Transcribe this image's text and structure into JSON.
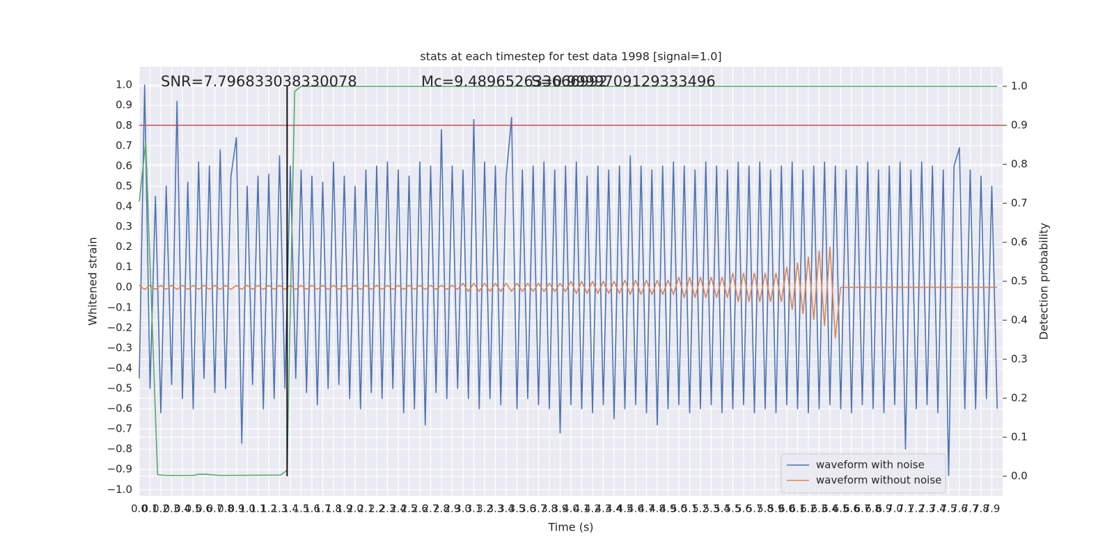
{
  "chart_data": {
    "type": "line",
    "title": "stats at each timestep for test data 1998 [signal=1.0]",
    "xlabel": "Time (s)",
    "ylabel": "Whitened strain",
    "y2label": "Detection probability",
    "annotations": [
      "SNR=7.796833038330078",
      "Mc=9.489652633666992",
      "S=0.9999709129333496"
    ],
    "grid": true,
    "legend": "lower right",
    "xlim": [
      0,
      8
    ],
    "ylim": [
      -1.03,
      1.09
    ],
    "y2lim": [
      -0.05,
      1.05
    ],
    "hline": {
      "value": 0.9,
      "axis": "y2",
      "color": "#c44e52"
    },
    "vline": {
      "x": 1.37,
      "ymin": 0.0,
      "ymax": 1.0,
      "axis": "y2",
      "color": "#000000"
    },
    "x": [
      0,
      0.05,
      0.1,
      0.15,
      0.2,
      0.25,
      0.3,
      0.35,
      0.4,
      0.45,
      0.5,
      0.55,
      0.6,
      0.65,
      0.7,
      0.75,
      0.8,
      0.85,
      0.9,
      0.95,
      1,
      1.05,
      1.1,
      1.15,
      1.2,
      1.25,
      1.3,
      1.35,
      1.4,
      1.45,
      1.5,
      1.55,
      1.6,
      1.65,
      1.7,
      1.75,
      1.8,
      1.85,
      1.9,
      1.95,
      2,
      2.05,
      2.1,
      2.15,
      2.2,
      2.25,
      2.3,
      2.35,
      2.4,
      2.45,
      2.5,
      2.55,
      2.6,
      2.65,
      2.7,
      2.75,
      2.8,
      2.85,
      2.9,
      2.95,
      3,
      3.05,
      3.1,
      3.15,
      3.2,
      3.25,
      3.3,
      3.35,
      3.4,
      3.45,
      3.5,
      3.55,
      3.6,
      3.65,
      3.7,
      3.75,
      3.8,
      3.85,
      3.9,
      3.95,
      4,
      4.05,
      4.1,
      4.15,
      4.2,
      4.25,
      4.3,
      4.35,
      4.4,
      4.45,
      4.5,
      4.55,
      4.6,
      4.65,
      4.7,
      4.75,
      4.8,
      4.85,
      4.9,
      4.95,
      5,
      5.05,
      5.1,
      5.15,
      5.2,
      5.25,
      5.3,
      5.35,
      5.4,
      5.45,
      5.5,
      5.55,
      5.6,
      5.65,
      5.7,
      5.75,
      5.8,
      5.85,
      5.9,
      5.95,
      6,
      6.05,
      6.1,
      6.15,
      6.2,
      6.25,
      6.3,
      6.35,
      6.4,
      6.45,
      6.5,
      6.55,
      6.6,
      6.65,
      6.7,
      6.75,
      6.8,
      6.85,
      6.9,
      6.95,
      7,
      7.05,
      7.1,
      7.15,
      7.2,
      7.25,
      7.3,
      7.35,
      7.4,
      7.45,
      7.5,
      7.55,
      7.6,
      7.65,
      7.7,
      7.75,
      7.8,
      7.85,
      7.9,
      7.95
    ],
    "series": [
      {
        "name": "waveform with noise",
        "color": "#4c72b0",
        "values": [
          -0.45,
          1.0,
          -0.5,
          0.45,
          -0.62,
          0.5,
          -0.48,
          0.92,
          -0.55,
          0.52,
          -0.6,
          0.62,
          -0.45,
          0.6,
          -0.52,
          0.68,
          -0.5,
          0.55,
          0.74,
          -0.77,
          0.5,
          -0.48,
          0.55,
          -0.6,
          0.56,
          -0.55,
          0.65,
          -0.5,
          0.6,
          -0.45,
          0.58,
          -0.52,
          0.55,
          -0.58,
          0.52,
          -0.5,
          0.62,
          -0.48,
          0.55,
          -0.55,
          0.5,
          -0.6,
          0.58,
          -0.52,
          0.6,
          -0.55,
          0.62,
          -0.5,
          0.58,
          -0.62,
          0.55,
          -0.6,
          0.62,
          -0.68,
          0.6,
          -0.52,
          0.78,
          -0.55,
          0.6,
          -0.5,
          0.58,
          -0.55,
          0.83,
          -0.6,
          0.62,
          -0.55,
          0.6,
          -0.58,
          0.55,
          0.84,
          -0.6,
          0.58,
          -0.55,
          0.6,
          -0.58,
          0.62,
          -0.6,
          0.58,
          -0.72,
          0.6,
          -0.58,
          0.62,
          -0.6,
          0.55,
          -0.62,
          0.6,
          -0.58,
          0.58,
          -0.65,
          0.6,
          -0.6,
          0.65,
          -0.58,
          0.6,
          -0.62,
          0.58,
          -0.68,
          0.6,
          -0.6,
          0.62,
          -0.58,
          0.6,
          -0.62,
          0.58,
          -0.6,
          0.62,
          -0.58,
          0.6,
          -0.62,
          0.58,
          -0.6,
          0.62,
          -0.58,
          0.6,
          -0.62,
          0.62,
          -0.6,
          0.58,
          -0.62,
          0.6,
          -0.58,
          0.62,
          -0.6,
          0.58,
          -0.62,
          0.6,
          -0.6,
          0.62,
          -0.58,
          0.6,
          -0.6,
          0.58,
          -0.62,
          0.6,
          -0.58,
          0.62,
          -0.6,
          0.58,
          -0.62,
          0.6,
          -0.58,
          0.62,
          -0.8,
          0.58,
          -0.6,
          0.62,
          -0.58,
          0.6,
          -0.62,
          0.58,
          -0.93,
          0.6,
          0.69,
          -0.6,
          0.58,
          -0.6,
          0.55,
          -0.55,
          0.5,
          -0.6
        ]
      },
      {
        "name": "waveform without noise",
        "color": "#dd8452",
        "values": [
          0.01,
          -0.01,
          0.01,
          -0.01,
          0.01,
          -0.01,
          0.01,
          -0.01,
          0.01,
          -0.01,
          0.01,
          -0.01,
          0.01,
          -0.01,
          0.01,
          -0.01,
          0.01,
          -0.01,
          0.01,
          -0.01,
          0.01,
          -0.01,
          0.01,
          -0.01,
          0.01,
          -0.01,
          0.01,
          -0.01,
          0.01,
          -0.01,
          0.01,
          -0.01,
          0.01,
          -0.01,
          0.01,
          -0.01,
          0.01,
          -0.01,
          0.01,
          -0.01,
          0.01,
          -0.01,
          0.01,
          -0.01,
          0.01,
          -0.01,
          0.01,
          -0.01,
          0.01,
          -0.01,
          0.01,
          -0.01,
          0.01,
          -0.01,
          0.01,
          -0.01,
          0.01,
          -0.01,
          0.01,
          -0.01,
          0.02,
          -0.02,
          0.02,
          -0.02,
          0.02,
          -0.02,
          0.02,
          -0.02,
          0.02,
          -0.02,
          0.02,
          -0.02,
          0.02,
          -0.02,
          0.02,
          -0.02,
          0.02,
          -0.02,
          0.02,
          -0.02,
          0.03,
          -0.03,
          0.03,
          -0.03,
          0.03,
          -0.03,
          0.03,
          -0.03,
          0.03,
          -0.03,
          0.035,
          -0.035,
          0.035,
          -0.035,
          0.035,
          -0.035,
          0.035,
          -0.035,
          0.035,
          -0.035,
          0.05,
          -0.05,
          0.05,
          -0.05,
          0.05,
          -0.05,
          0.05,
          -0.05,
          0.05,
          -0.05,
          0.07,
          -0.07,
          0.07,
          -0.07,
          0.07,
          -0.07,
          0.07,
          -0.07,
          0.07,
          -0.07,
          0.1,
          -0.11,
          0.12,
          -0.13,
          0.15,
          -0.16,
          0.18,
          -0.19,
          0.2,
          -0.25,
          0,
          0,
          0,
          0,
          0,
          0,
          0,
          0,
          0,
          0,
          0,
          0,
          0,
          0,
          0,
          0,
          0,
          0,
          0,
          0,
          0,
          0,
          0,
          0,
          0,
          0,
          0,
          0,
          0,
          0
        ]
      },
      {
        "color": "#55a868",
        "axis": "y2",
        "x": [
          0,
          0.06,
          0.17,
          0.25,
          0.5,
          0.55,
          0.62,
          0.75,
          1.31,
          1.37,
          1.44,
          1.5,
          7.95
        ],
        "values": [
          0.705,
          0.856,
          0.004,
          0.002,
          0.002,
          0.005,
          0.005,
          0.002,
          0.003,
          0.015,
          0.987,
          1.0,
          1.0
        ]
      }
    ],
    "yticks": [
      {
        "value": -1.0,
        "label": "−1.0"
      },
      {
        "value": -0.9,
        "label": "−0.9"
      },
      {
        "value": -0.8,
        "label": "−0.8"
      },
      {
        "value": -0.7,
        "label": "−0.7"
      },
      {
        "value": -0.6,
        "label": "−0.6"
      },
      {
        "value": -0.5,
        "label": "−0.5"
      },
      {
        "value": -0.4,
        "label": "−0.4"
      },
      {
        "value": -0.3,
        "label": "−0.3"
      },
      {
        "value": -0.2,
        "label": "−0.2"
      },
      {
        "value": -0.1,
        "label": "−0.1"
      },
      {
        "value": 0,
        "label": "0.0"
      },
      0.1,
      0.2,
      0.3,
      0.4,
      0.5,
      0.6,
      0.7,
      0.8,
      0.9,
      {
        "value": 1,
        "label": "1.0"
      }
    ],
    "y2ticks": [
      {
        "value": 0,
        "label": "0.0"
      },
      0.1,
      0.2,
      0.3,
      0.4,
      0.5,
      0.6,
      0.7,
      0.8,
      0.9,
      {
        "value": 1,
        "label": "1.0"
      }
    ],
    "xticks": [
      {
        "value": 0,
        "label": "0.0"
      },
      0.1,
      0.2,
      0.3,
      0.4,
      0.5,
      0.6,
      0.7,
      0.8,
      0.9,
      {
        "value": 1,
        "label": "1.0"
      },
      1.1,
      1.2,
      1.3,
      1.4,
      1.5,
      1.6,
      1.7,
      1.8,
      1.9,
      {
        "value": 2,
        "label": "2.0"
      },
      2.1,
      2.2,
      2.3,
      2.4,
      2.5,
      2.6,
      2.7,
      2.8,
      2.9,
      {
        "value": 3,
        "label": "3.0"
      },
      3.1,
      3.2,
      3.3,
      3.4,
      3.5,
      3.6,
      3.7,
      3.8,
      3.9,
      {
        "value": 4,
        "label": "4.0"
      },
      4.1,
      4.2,
      4.3,
      4.4,
      4.5,
      4.6,
      4.7,
      4.8,
      4.9,
      {
        "value": 5,
        "label": "5.0"
      },
      5.1,
      5.2,
      5.3,
      5.4,
      5.5,
      5.6,
      5.7,
      5.8,
      5.9,
      {
        "value": 6,
        "label": "6.0"
      },
      6.1,
      6.2,
      6.3,
      6.4,
      6.5,
      6.6,
      6.7,
      6.8,
      6.9,
      {
        "value": 7,
        "label": "7.0"
      },
      7.1,
      7.2,
      7.3,
      7.4,
      7.5,
      7.6,
      7.7,
      7.8,
      7.9
    ]
  }
}
